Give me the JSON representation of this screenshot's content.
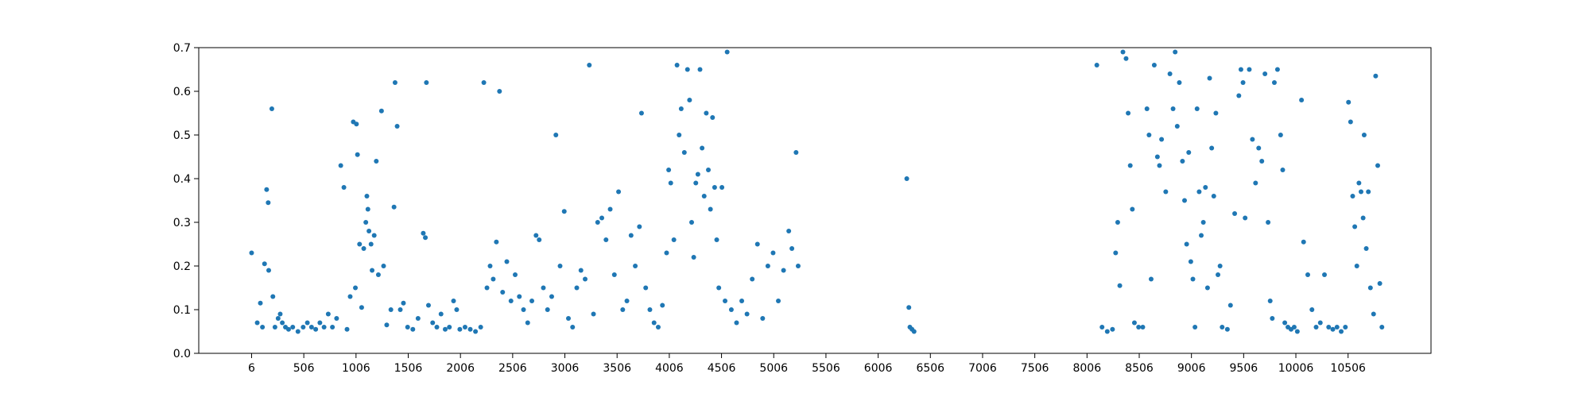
{
  "chart_data": {
    "type": "scatter",
    "title": "",
    "xlabel": "",
    "ylabel": "",
    "xlim": [
      -500,
      11300
    ],
    "ylim": [
      0,
      0.7
    ],
    "grid": false,
    "marker_color": "#1f77b4",
    "x_ticks": [
      6,
      506,
      1006,
      1506,
      2006,
      2506,
      3006,
      3506,
      4006,
      4506,
      5006,
      5506,
      6006,
      6506,
      7006,
      7506,
      8006,
      8506,
      9006,
      9506,
      10006,
      10506
    ],
    "x_tick_labels": [
      "6",
      "506",
      "1006",
      "1506",
      "2006",
      "2506",
      "3006",
      "3506",
      "4006",
      "4506",
      "5006",
      "5506",
      "6006",
      "6506",
      "7006",
      "7506",
      "8006",
      "8506",
      "9006",
      "9506",
      "10006",
      "10506"
    ],
    "y_ticks": [
      0.0,
      0.1,
      0.2,
      0.3,
      0.4,
      0.5,
      0.6,
      0.7
    ],
    "y_tick_labels": [
      "0.0",
      "0.1",
      "0.2",
      "0.3",
      "0.4",
      "0.5",
      "0.6",
      "0.7"
    ],
    "series": [
      {
        "points": [
          [
            6,
            0.23
          ],
          [
            60,
            0.07
          ],
          [
            90,
            0.115
          ],
          [
            110,
            0.06
          ],
          [
            130,
            0.205
          ],
          [
            150,
            0.375
          ],
          [
            165,
            0.345
          ],
          [
            170,
            0.19
          ],
          [
            200,
            0.56
          ],
          [
            210,
            0.13
          ],
          [
            230,
            0.06
          ],
          [
            260,
            0.08
          ],
          [
            280,
            0.09
          ],
          [
            300,
            0.07
          ],
          [
            330,
            0.06
          ],
          [
            360,
            0.055
          ],
          [
            400,
            0.06
          ],
          [
            450,
            0.05
          ],
          [
            500,
            0.06
          ],
          [
            540,
            0.07
          ],
          [
            580,
            0.06
          ],
          [
            620,
            0.055
          ],
          [
            660,
            0.07
          ],
          [
            700,
            0.06
          ],
          [
            740,
            0.09
          ],
          [
            780,
            0.06
          ],
          [
            820,
            0.08
          ],
          [
            860,
            0.43
          ],
          [
            890,
            0.38
          ],
          [
            920,
            0.055
          ],
          [
            950,
            0.13
          ],
          [
            980,
            0.53
          ],
          [
            1000,
            0.15
          ],
          [
            1010,
            0.525
          ],
          [
            1020,
            0.455
          ],
          [
            1040,
            0.25
          ],
          [
            1060,
            0.105
          ],
          [
            1080,
            0.24
          ],
          [
            1100,
            0.3
          ],
          [
            1110,
            0.36
          ],
          [
            1120,
            0.33
          ],
          [
            1130,
            0.28
          ],
          [
            1150,
            0.25
          ],
          [
            1160,
            0.19
          ],
          [
            1180,
            0.27
          ],
          [
            1200,
            0.44
          ],
          [
            1220,
            0.18
          ],
          [
            1250,
            0.555
          ],
          [
            1270,
            0.2
          ],
          [
            1300,
            0.065
          ],
          [
            1340,
            0.1
          ],
          [
            1370,
            0.335
          ],
          [
            1380,
            0.62
          ],
          [
            1400,
            0.52
          ],
          [
            1430,
            0.1
          ],
          [
            1460,
            0.115
          ],
          [
            1500,
            0.06
          ],
          [
            1550,
            0.055
          ],
          [
            1600,
            0.08
          ],
          [
            1650,
            0.275
          ],
          [
            1670,
            0.265
          ],
          [
            1680,
            0.62
          ],
          [
            1700,
            0.11
          ],
          [
            1740,
            0.07
          ],
          [
            1780,
            0.06
          ],
          [
            1820,
            0.09
          ],
          [
            1860,
            0.055
          ],
          [
            1900,
            0.06
          ],
          [
            1940,
            0.12
          ],
          [
            1970,
            0.1
          ],
          [
            2000,
            0.055
          ],
          [
            2050,
            0.06
          ],
          [
            2100,
            0.055
          ],
          [
            2150,
            0.05
          ],
          [
            2200,
            0.06
          ],
          [
            2230,
            0.62
          ],
          [
            2260,
            0.15
          ],
          [
            2290,
            0.2
          ],
          [
            2320,
            0.17
          ],
          [
            2350,
            0.255
          ],
          [
            2380,
            0.6
          ],
          [
            2410,
            0.14
          ],
          [
            2450,
            0.21
          ],
          [
            2490,
            0.12
          ],
          [
            2530,
            0.18
          ],
          [
            2570,
            0.13
          ],
          [
            2610,
            0.1
          ],
          [
            2650,
            0.07
          ],
          [
            2690,
            0.12
          ],
          [
            2730,
            0.27
          ],
          [
            2760,
            0.26
          ],
          [
            2800,
            0.15
          ],
          [
            2840,
            0.1
          ],
          [
            2880,
            0.13
          ],
          [
            2920,
            0.5
          ],
          [
            2960,
            0.2
          ],
          [
            3000,
            0.325
          ],
          [
            3040,
            0.08
          ],
          [
            3080,
            0.06
          ],
          [
            3120,
            0.15
          ],
          [
            3160,
            0.19
          ],
          [
            3200,
            0.17
          ],
          [
            3240,
            0.66
          ],
          [
            3280,
            0.09
          ],
          [
            3320,
            0.3
          ],
          [
            3360,
            0.31
          ],
          [
            3400,
            0.26
          ],
          [
            3440,
            0.33
          ],
          [
            3480,
            0.18
          ],
          [
            3520,
            0.37
          ],
          [
            3560,
            0.1
          ],
          [
            3600,
            0.12
          ],
          [
            3640,
            0.27
          ],
          [
            3680,
            0.2
          ],
          [
            3720,
            0.29
          ],
          [
            3740,
            0.55
          ],
          [
            3780,
            0.15
          ],
          [
            3820,
            0.1
          ],
          [
            3860,
            0.07
          ],
          [
            3900,
            0.06
          ],
          [
            3940,
            0.11
          ],
          [
            3980,
            0.23
          ],
          [
            4000,
            0.42
          ],
          [
            4020,
            0.39
          ],
          [
            4050,
            0.26
          ],
          [
            4080,
            0.66
          ],
          [
            4100,
            0.5
          ],
          [
            4120,
            0.56
          ],
          [
            4150,
            0.46
          ],
          [
            4180,
            0.65
          ],
          [
            4200,
            0.58
          ],
          [
            4220,
            0.3
          ],
          [
            4240,
            0.22
          ],
          [
            4260,
            0.39
          ],
          [
            4280,
            0.41
          ],
          [
            4300,
            0.65
          ],
          [
            4320,
            0.47
          ],
          [
            4340,
            0.36
          ],
          [
            4360,
            0.55
          ],
          [
            4380,
            0.42
          ],
          [
            4400,
            0.33
          ],
          [
            4420,
            0.54
          ],
          [
            4440,
            0.38
          ],
          [
            4460,
            0.26
          ],
          [
            4480,
            0.15
          ],
          [
            4510,
            0.38
          ],
          [
            4540,
            0.12
          ],
          [
            4560,
            0.69
          ],
          [
            4600,
            0.1
          ],
          [
            4650,
            0.07
          ],
          [
            4700,
            0.12
          ],
          [
            4750,
            0.09
          ],
          [
            4800,
            0.17
          ],
          [
            4850,
            0.25
          ],
          [
            4900,
            0.08
          ],
          [
            4950,
            0.2
          ],
          [
            5000,
            0.23
          ],
          [
            5050,
            0.12
          ],
          [
            5100,
            0.19
          ],
          [
            5150,
            0.28
          ],
          [
            5180,
            0.24
          ],
          [
            5220,
            0.46
          ],
          [
            5240,
            0.2
          ],
          [
            6280,
            0.4
          ],
          [
            6300,
            0.105
          ],
          [
            6310,
            0.06
          ],
          [
            6330,
            0.055
          ],
          [
            6350,
            0.05
          ],
          [
            8100,
            0.66
          ],
          [
            8150,
            0.06
          ],
          [
            8200,
            0.05
          ],
          [
            8250,
            0.055
          ],
          [
            8280,
            0.23
          ],
          [
            8300,
            0.3
          ],
          [
            8320,
            0.155
          ],
          [
            8350,
            0.69
          ],
          [
            8380,
            0.675
          ],
          [
            8400,
            0.55
          ],
          [
            8420,
            0.43
          ],
          [
            8440,
            0.33
          ],
          [
            8460,
            0.07
          ],
          [
            8500,
            0.06
          ],
          [
            8540,
            0.06
          ],
          [
            8580,
            0.56
          ],
          [
            8600,
            0.5
          ],
          [
            8620,
            0.17
          ],
          [
            8650,
            0.66
          ],
          [
            8680,
            0.45
          ],
          [
            8700,
            0.43
          ],
          [
            8720,
            0.49
          ],
          [
            8760,
            0.37
          ],
          [
            8800,
            0.64
          ],
          [
            8830,
            0.56
          ],
          [
            8850,
            0.69
          ],
          [
            8870,
            0.52
          ],
          [
            8890,
            0.62
          ],
          [
            8920,
            0.44
          ],
          [
            8940,
            0.35
          ],
          [
            8960,
            0.25
          ],
          [
            8980,
            0.46
          ],
          [
            9000,
            0.21
          ],
          [
            9020,
            0.17
          ],
          [
            9040,
            0.06
          ],
          [
            9060,
            0.56
          ],
          [
            9080,
            0.37
          ],
          [
            9100,
            0.27
          ],
          [
            9120,
            0.3
          ],
          [
            9140,
            0.38
          ],
          [
            9160,
            0.15
          ],
          [
            9180,
            0.63
          ],
          [
            9200,
            0.47
          ],
          [
            9220,
            0.36
          ],
          [
            9240,
            0.55
          ],
          [
            9260,
            0.18
          ],
          [
            9280,
            0.2
          ],
          [
            9300,
            0.06
          ],
          [
            9350,
            0.055
          ],
          [
            9380,
            0.11
          ],
          [
            9420,
            0.32
          ],
          [
            9460,
            0.59
          ],
          [
            9480,
            0.65
          ],
          [
            9500,
            0.62
          ],
          [
            9520,
            0.31
          ],
          [
            9560,
            0.65
          ],
          [
            9590,
            0.49
          ],
          [
            9620,
            0.39
          ],
          [
            9650,
            0.47
          ],
          [
            9680,
            0.44
          ],
          [
            9710,
            0.64
          ],
          [
            9740,
            0.3
          ],
          [
            9760,
            0.12
          ],
          [
            9780,
            0.08
          ],
          [
            9800,
            0.62
          ],
          [
            9830,
            0.65
          ],
          [
            9860,
            0.5
          ],
          [
            9880,
            0.42
          ],
          [
            9900,
            0.07
          ],
          [
            9930,
            0.06
          ],
          [
            9960,
            0.055
          ],
          [
            9990,
            0.06
          ],
          [
            10020,
            0.05
          ],
          [
            10060,
            0.58
          ],
          [
            10080,
            0.255
          ],
          [
            10120,
            0.18
          ],
          [
            10160,
            0.1
          ],
          [
            10200,
            0.06
          ],
          [
            10240,
            0.07
          ],
          [
            10280,
            0.18
          ],
          [
            10320,
            0.06
          ],
          [
            10360,
            0.055
          ],
          [
            10400,
            0.06
          ],
          [
            10440,
            0.05
          ],
          [
            10480,
            0.06
          ],
          [
            10510,
            0.575
          ],
          [
            10530,
            0.53
          ],
          [
            10550,
            0.36
          ],
          [
            10570,
            0.29
          ],
          [
            10590,
            0.2
          ],
          [
            10610,
            0.39
          ],
          [
            10630,
            0.37
          ],
          [
            10650,
            0.31
          ],
          [
            10660,
            0.5
          ],
          [
            10680,
            0.24
          ],
          [
            10700,
            0.37
          ],
          [
            10720,
            0.15
          ],
          [
            10750,
            0.09
          ],
          [
            10770,
            0.635
          ],
          [
            10790,
            0.43
          ],
          [
            10810,
            0.16
          ],
          [
            10830,
            0.06
          ]
        ]
      }
    ]
  }
}
